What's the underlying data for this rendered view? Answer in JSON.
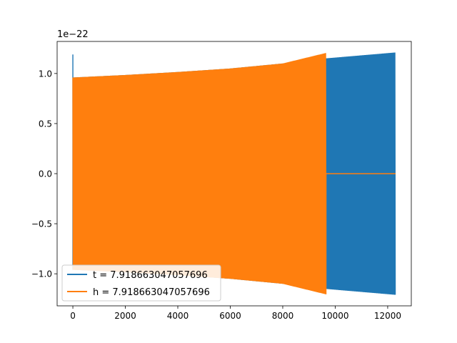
{
  "chart_data": {
    "type": "line",
    "title": "",
    "xlabel": "",
    "ylabel": "",
    "xlim": [
      -600,
      12900
    ],
    "ylim": [
      -1.32e-22,
      1.32e-22
    ],
    "y_scale_label": "1e−22",
    "x_ticks": [
      {
        "value": 0,
        "label": "0"
      },
      {
        "value": 2000,
        "label": "2000"
      },
      {
        "value": 4000,
        "label": "4000"
      },
      {
        "value": 6000,
        "label": "6000"
      },
      {
        "value": 8000,
        "label": "8000"
      },
      {
        "value": 10000,
        "label": "10000"
      },
      {
        "value": 12000,
        "label": "12000"
      }
    ],
    "y_ticks": [
      {
        "value": -1e-22,
        "label": "−1.0"
      },
      {
        "value": -5e-23,
        "label": "−0.5"
      },
      {
        "value": 0.0,
        "label": "0.0"
      },
      {
        "value": 5e-23,
        "label": "0.5"
      },
      {
        "value": 1e-22,
        "label": "1.0"
      }
    ],
    "grid": false,
    "legend_position": "lower-left",
    "series": [
      {
        "name": "t = 7.918663047057696",
        "color": "#1f77b4",
        "kind": "oscillating-envelope",
        "x_start": 0,
        "x_end": 12300,
        "spike_peak": 1.19e-22,
        "envelope": [
          [
            0,
            9.6e-23
          ],
          [
            2000,
            9.85e-23
          ],
          [
            4000,
            1.015e-22
          ],
          [
            6000,
            1.05e-22
          ],
          [
            8000,
            1.1e-22
          ],
          [
            9600,
            1.15e-22
          ],
          [
            12300,
            1.21e-22
          ]
        ]
      },
      {
        "name": "h = 7.918663047057696",
        "color": "#ff7f0e",
        "kind": "oscillating-envelope-then-zero",
        "x_start": 0,
        "x_end_oscillation": 9650,
        "x_end": 12300,
        "envelope": [
          [
            0,
            9.6e-23
          ],
          [
            2000,
            9.85e-23
          ],
          [
            4000,
            1.015e-22
          ],
          [
            6000,
            1.05e-22
          ],
          [
            8000,
            1.1e-22
          ],
          [
            9650,
            1.205e-22
          ]
        ],
        "after_value": 0.0
      }
    ]
  }
}
